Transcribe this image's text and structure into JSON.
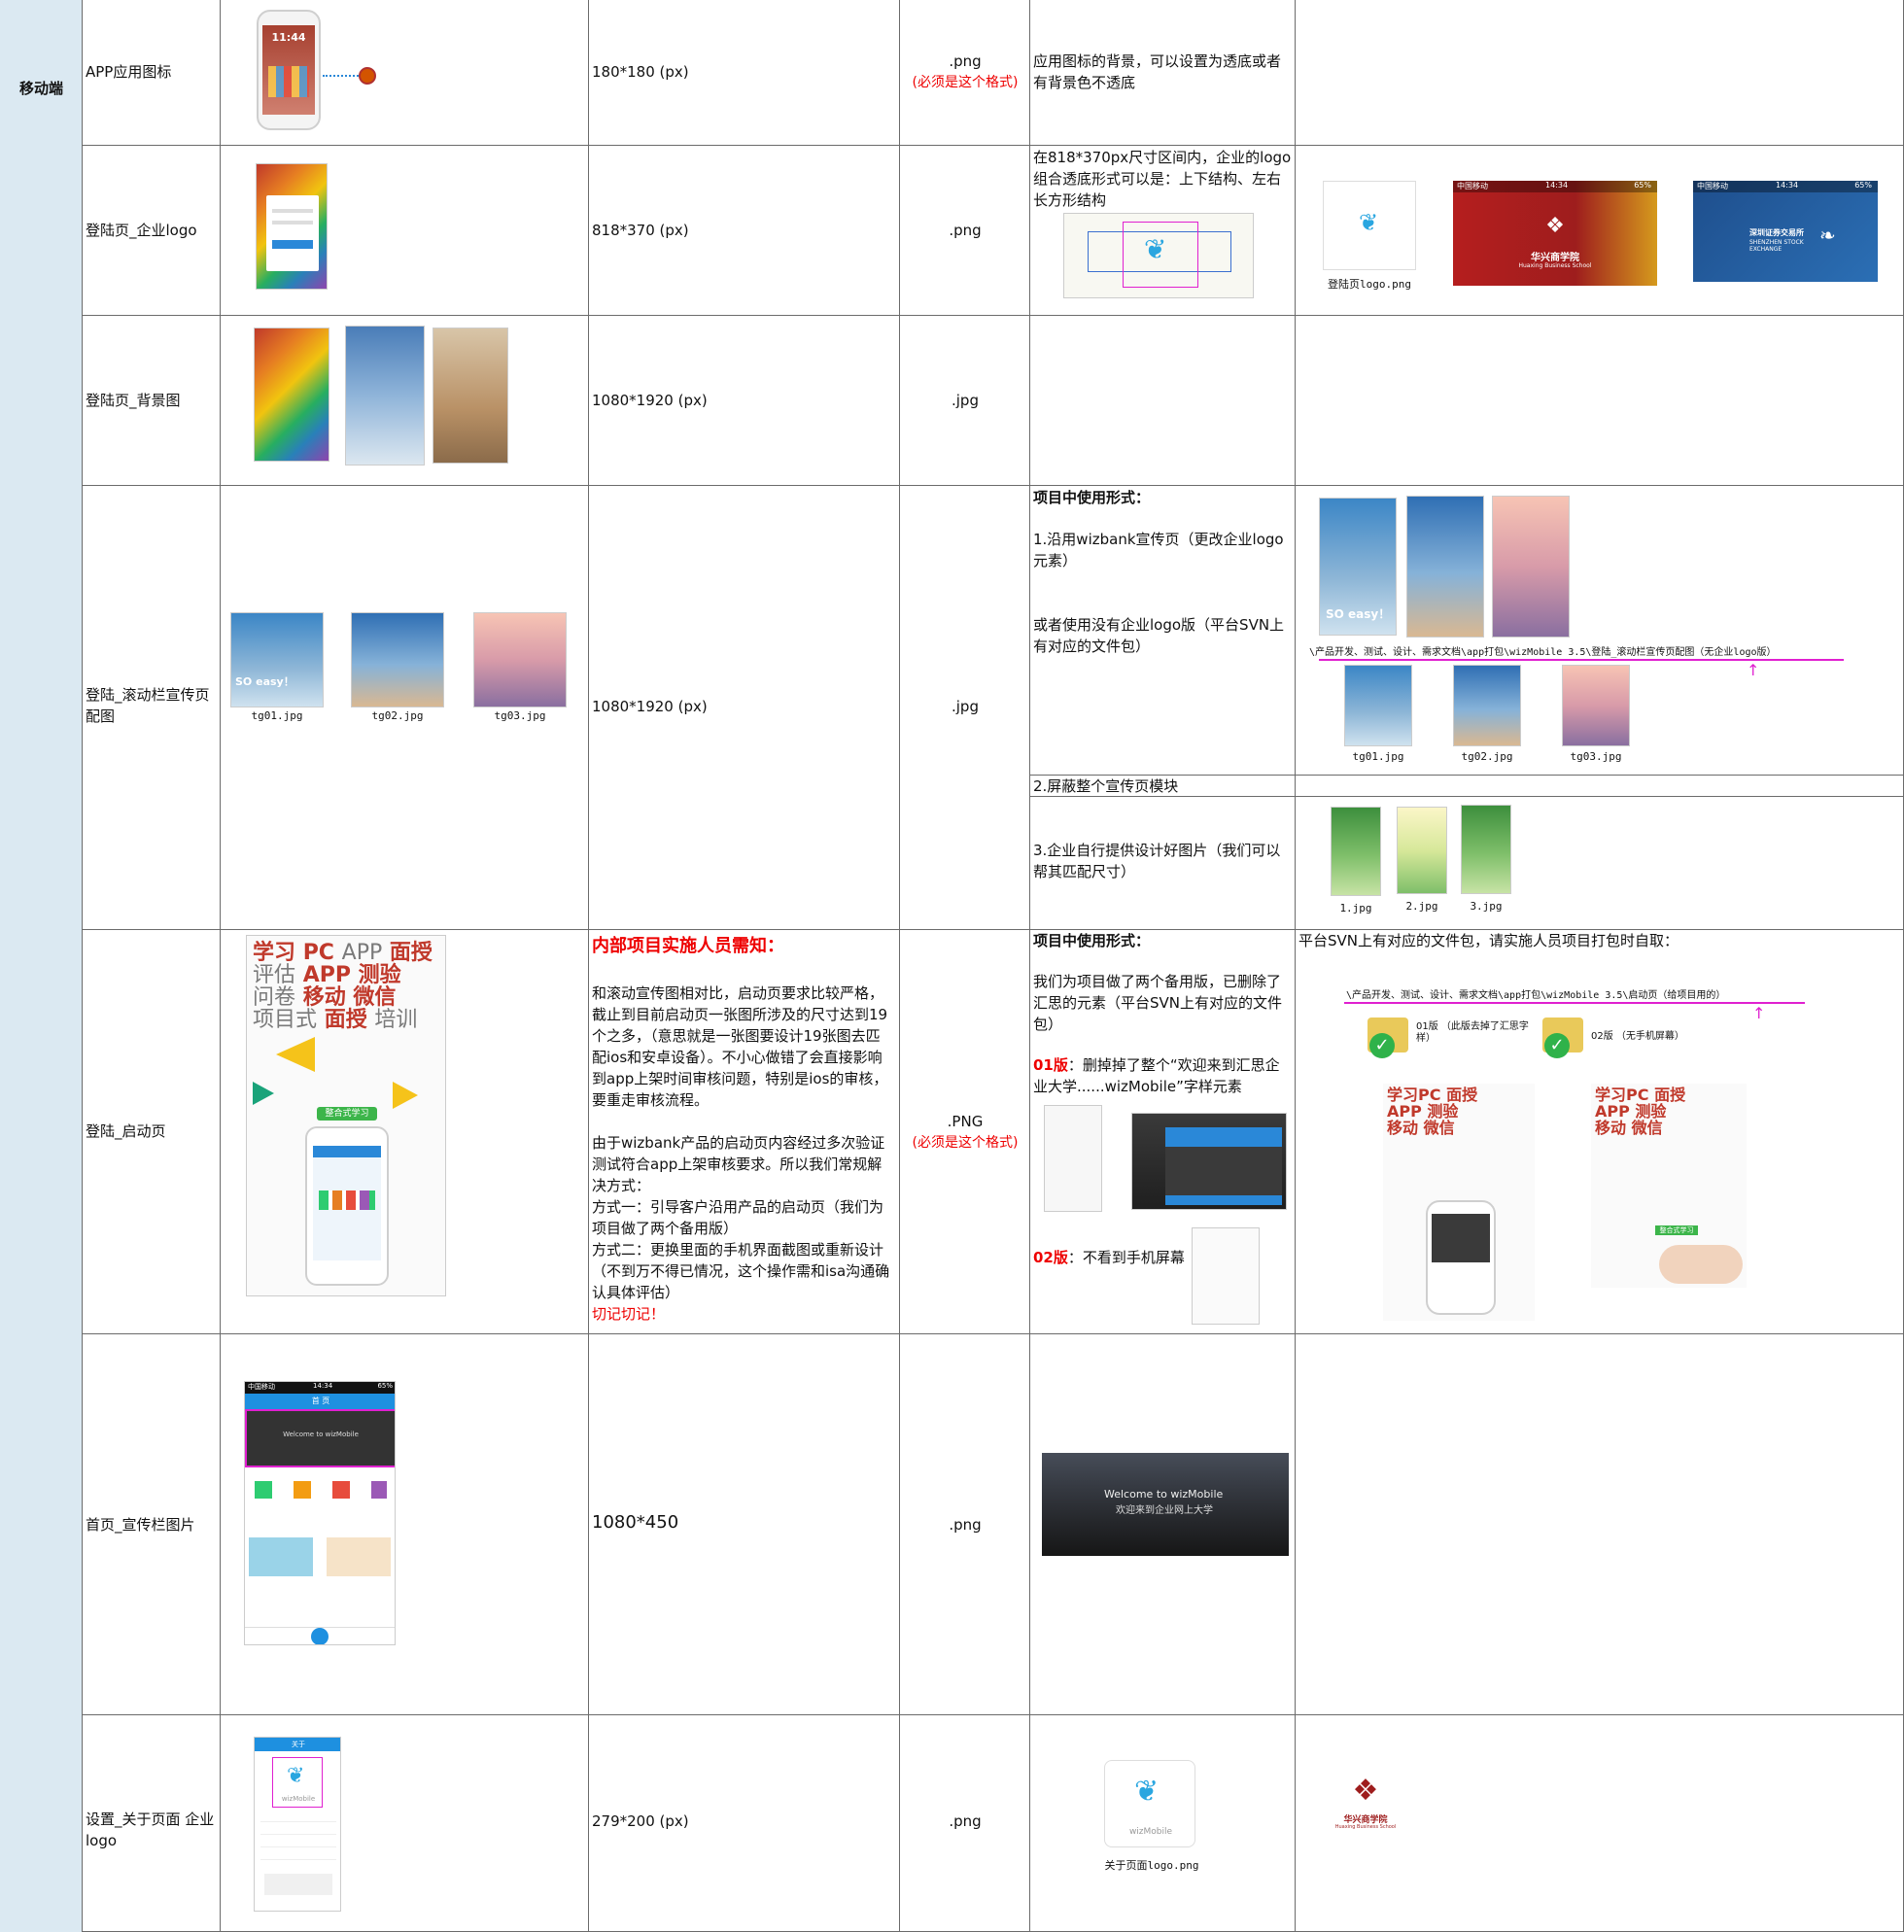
{
  "section": "移动端",
  "rows": [
    {
      "name": "APP应用图标",
      "size": "180*180 (px)",
      "format": ".png",
      "format_note": "(必须是这个格式)",
      "notes": "应用图标的背景，可以设置为透底或者有背景色不透底",
      "phone_time": "11:44"
    },
    {
      "name": "登陆页_企业logo",
      "size": "818*370 (px)",
      "format": ".png",
      "notes": "在818*370px尺寸区间内，企业的logo组合透底形式可以是：上下结构、左右长方形结构",
      "example_caption": "登陆页logo.png",
      "red_brand": "华兴商学院",
      "red_brand_en": "Huaxing Business School",
      "blue_brand": "深圳证券交易所",
      "blue_brand_en": "SHENZHEN STOCK EXCHANGE",
      "status_carrier": "中国移动",
      "status_time": "14:34",
      "status_battery": "65%"
    },
    {
      "name": "登陆页_背景图",
      "size": "1080*1920 (px)",
      "format": ".jpg"
    },
    {
      "name": "登陆_滚动栏宣传页配图",
      "size": "1080*1920 (px)",
      "format": ".jpg",
      "files": [
        "tg01.jpg",
        "tg02.jpg",
        "tg03.jpg"
      ],
      "usage_title": "项目中使用形式：",
      "usage_1": "1.沿用wizbank宣传页（更改企业logo元素）",
      "usage_1b": "或者使用没有企业logo版（平台SVN上有对应的文件包）",
      "svn_path": "\\产品开发、测试、设计、需求文档\\app打包\\wizMobile 3.5\\登陆_滚动栏宣传页配图（无企业logo版）",
      "usage_2": "2.屏蔽整个宣传页模块",
      "usage_3": "3.企业自行提供设计好图片（我们可以帮其匹配尺寸）",
      "custom_files": [
        "1.jpg",
        "2.jpg",
        "3.jpg"
      ],
      "promo_text_1": "SO easy！"
    },
    {
      "name": "登陆_启动页",
      "format": ".PNG",
      "format_note": "(必须是这个格式)",
      "notice_title": "内部项目实施人员需知：",
      "notice_p1": "和滚动宣传图相对比，启动页要求比较严格，截止到目前启动页一张图所涉及的尺寸达到19个之多，（意思就是一张图要设计19张图去匹配ios和安卓设备）。不小心做错了会直接影响到app上架时间审核问题，特别是ios的审核，要重走审核流程。",
      "notice_p2": "由于wizbank产品的启动页内容经过多次验证测试符合app上架审核要求。所以我们常规解决方式：",
      "notice_m1": "方式一：引导客户沿用产品的启动页（我们为项目做了两个备用版）",
      "notice_m2": "方式二：更换里面的手机界面截图或重新设计（不到万不得已情况，这个操作需和isa沟通确认具体评估）",
      "notice_warn": "切记切记！",
      "usage_title": "项目中使用形式：",
      "usage_p1": "我们为项目做了两个备用版，已删除了汇思的元素（平台SVN上有对应的文件包）",
      "v01_label": "01版",
      "v01_text": "：删掉掉了整个“欢迎来到汇思企业大学......wizMobile”字样元素",
      "v02_label": "02版",
      "v02_text": "：不看到手机屏幕",
      "right_note": "平台SVN上有对应的文件包，请实施人员项目打包时自取：",
      "svn_path": "\\产品开发、测试、设计、需求文档\\app打包\\wizMobile 3.5\\启动页（给项目用的）",
      "folder1": "01版 （此版去掉了汇思字样）",
      "folder2": "02版 （无手机屏幕）",
      "cloud_words": [
        "学习",
        "PC",
        "APP",
        "移动",
        "面授",
        "问卷",
        "微信",
        "评估",
        "测验",
        "项目式",
        "培训"
      ],
      "cta": "整合式学习"
    },
    {
      "name": "首页_宣传栏图片",
      "size": "1080*450",
      "format": ".png",
      "banner_title": "Welcome to wizMobile",
      "banner_sub": "欢迎来到企业网上大学",
      "home_title": "首 页",
      "status_carrier": "中国移动",
      "status_time": "14:34",
      "status_battery": "65%"
    },
    {
      "name": "设置_关于页面 企业logo",
      "size": "279*200 (px)",
      "format": ".png",
      "caption": "关于页面logo.png",
      "app_name": "wizMobile",
      "header": "关于",
      "brand": "华兴商学院",
      "brand_en": "Huaxing Business School"
    }
  ]
}
